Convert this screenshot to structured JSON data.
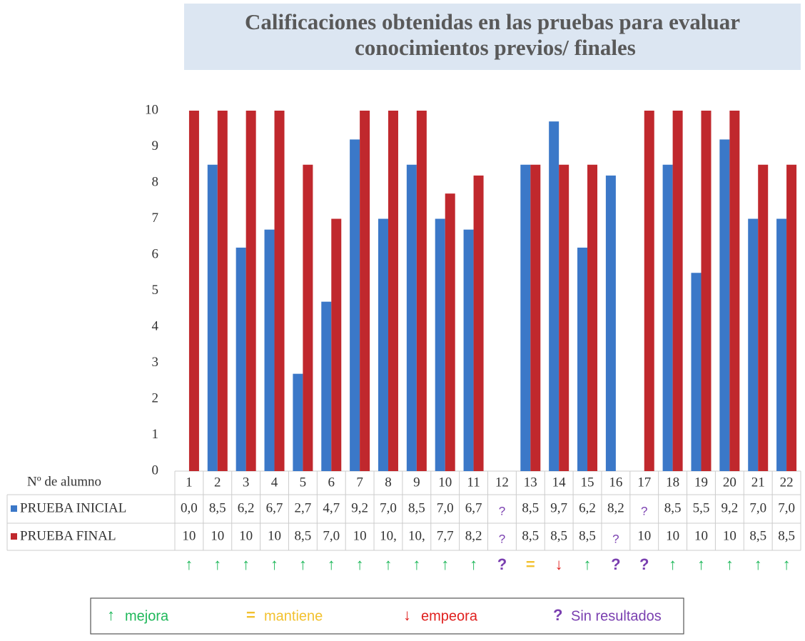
{
  "chart_data": {
    "type": "bar",
    "title": "Calificaciones obtenidas en las pruebas para evaluar conocimientos  previos/ finales",
    "x_label": "Nº de alumno",
    "categories": [
      "1",
      "2",
      "3",
      "4",
      "5",
      "6",
      "7",
      "8",
      "9",
      "10",
      "11",
      "12",
      "13",
      "14",
      "15",
      "16",
      "17",
      "18",
      "19",
      "20",
      "21",
      "22"
    ],
    "series": [
      {
        "name": "PRUEBA INICIAL",
        "color": "#3b78c8",
        "values": [
          0,
          8.5,
          6.2,
          6.7,
          2.7,
          4.7,
          9.2,
          7.0,
          8.5,
          7.0,
          6.7,
          null,
          8.5,
          9.7,
          6.2,
          8.2,
          null,
          8.5,
          5.5,
          9.2,
          7.0,
          7.0
        ],
        "value_labels": [
          "0,0",
          "8,5",
          "6,2",
          "6,7",
          "2,7",
          "4,7",
          "9,2",
          "7,0",
          "8,5",
          "7,0",
          "6,7",
          "?",
          "8,5",
          "9,7",
          "6,2",
          "8,2",
          "?",
          "8,5",
          "5,5",
          "9,2",
          "7,0",
          "7,0"
        ]
      },
      {
        "name": "PRUEBA FINAL",
        "color": "#c0282d",
        "values": [
          10,
          10,
          10,
          10,
          8.5,
          7.0,
          10,
          10,
          10,
          7.7,
          8.2,
          null,
          8.5,
          8.5,
          8.5,
          null,
          10,
          10,
          10,
          10,
          8.5,
          8.5
        ],
        "value_labels": [
          "10",
          "10",
          "10",
          "10",
          "8,5",
          "7,0",
          "10",
          "10,",
          "10,",
          "7,7",
          "8,2",
          "?",
          "8,5",
          "8,5",
          "8,5",
          "?",
          "10",
          "10",
          "10",
          "10",
          "8,5",
          "8,5"
        ]
      }
    ],
    "ylim": [
      0,
      10
    ],
    "yticks": [
      0,
      1,
      2,
      3,
      4,
      5,
      6,
      7,
      8,
      9,
      10
    ],
    "trend": [
      "↑",
      "↑",
      "↑",
      "↑",
      "↑",
      "↑",
      "↑",
      "↑",
      "↑",
      "↑",
      "↑",
      "?",
      "=",
      "↓",
      "↑",
      "?",
      "?",
      "↑",
      "↑",
      "↑",
      "↑",
      "↑"
    ],
    "trend_legend": [
      {
        "symbol": "↑",
        "label": "mejora",
        "color": "#1fb85a"
      },
      {
        "symbol": "=",
        "label": "mantiene",
        "color": "#f2c12e"
      },
      {
        "symbol": "↓",
        "label": "empeora",
        "color": "#e0201e"
      },
      {
        "symbol": "?",
        "label": "Sin resultados",
        "color": "#7a3fb0"
      }
    ]
  }
}
